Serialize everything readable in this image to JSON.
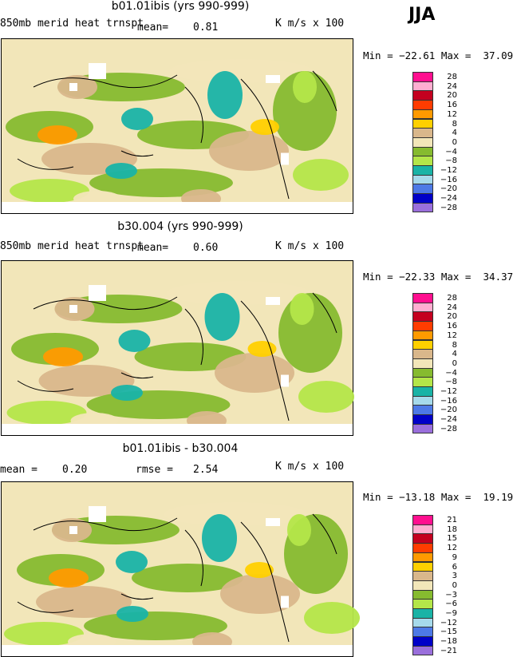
{
  "season": "JJA",
  "panels": [
    {
      "title": "b01.01ibis (yrs 990-999)",
      "left_label": "850mb merid heat trnspt",
      "stat_label": "mean=",
      "stat_value": "0.81",
      "units": "K m/s x 100",
      "minmax": "Min = −22.61 Max =  37.09",
      "scale": [
        "28",
        "24",
        "20",
        "16",
        "12",
        "8",
        "4",
        "0",
        "−4",
        "−8",
        "−12",
        "−16",
        "−20",
        "−24",
        "−28"
      ]
    },
    {
      "title": "b30.004 (yrs 990-999)",
      "left_label": "850mb merid heat trnspt",
      "stat_label": "mean=",
      "stat_value": "0.60",
      "units": "K m/s x 100",
      "minmax": "Min = −22.33 Max =  34.37",
      "scale": [
        "28",
        "24",
        "20",
        "16",
        "12",
        "8",
        "4",
        "0",
        "−4",
        "−8",
        "−12",
        "−16",
        "−20",
        "−24",
        "−28"
      ]
    },
    {
      "title": "b01.01ibis - b30.004",
      "left_label": "mean =",
      "left_value": "0.20",
      "stat_label": "rmse =",
      "stat_value": "2.54",
      "units": "K m/s x 100",
      "minmax": "Min = −13.18 Max =  19.19",
      "scale": [
        "21",
        "18",
        "15",
        "12",
        "9",
        "6",
        "3",
        "0",
        "−3",
        "−6",
        "−9",
        "−12",
        "−15",
        "−18",
        "−21"
      ]
    }
  ],
  "colors": [
    "#ff0f8f",
    "#ffaed1",
    "#c4001f",
    "#ff3c00",
    "#ff9a00",
    "#ffd000",
    "#d9b78b",
    "#f2e6b9",
    "#86bb2f",
    "#b4e649",
    "#19b3a6",
    "#a6daeb",
    "#4d79e6",
    "#0000c8",
    "#9a6fdc"
  ]
}
